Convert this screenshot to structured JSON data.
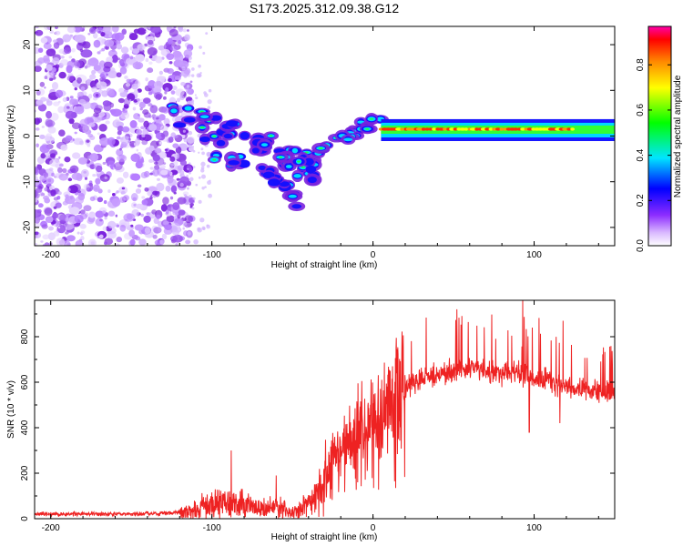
{
  "title": "S173.2025.312.09.38.G12",
  "colors": {
    "snr_line": "#ee2222",
    "scatter_noise": "#9a55ee",
    "axis": "#000000"
  },
  "chart_data": [
    {
      "type": "heatmap",
      "name": "spectrogram",
      "title": "S173.2025.312.09.38.G12",
      "xlabel": "Height of straight line (km)",
      "ylabel": "Frequency (Hz)",
      "xlim": [
        -210,
        150
      ],
      "ylim": [
        -24,
        24
      ],
      "xticks": [
        -200,
        -100,
        0,
        100
      ],
      "yticks": [
        -20,
        -10,
        0,
        10,
        20
      ],
      "xtick_labels": [
        "-200",
        "-100",
        "0",
        "100"
      ],
      "ytick_labels": [
        "-20",
        "-10",
        "0",
        "10",
        "20"
      ],
      "colorbar": {
        "label": "Normalized spectral amplitude",
        "range": [
          0,
          0.97
        ],
        "ticks": [
          0.0,
          0.2,
          0.4,
          0.6,
          0.8
        ],
        "tick_labels": [
          "0.0",
          "0.2",
          "0.4",
          "0.6",
          "0.8"
        ]
      },
      "features": {
        "noise_region_km": [
          -210,
          -120
        ],
        "descending_track_km": [
          -125,
          -35
        ],
        "descending_track_hz": [
          6,
          -8
        ],
        "secondary_track_km": [
          -70,
          -45
        ],
        "secondary_track_hz": [
          -6,
          -15
        ],
        "recovery_km": [
          -35,
          5
        ],
        "recovery_hz": [
          -3,
          3
        ],
        "steady_band_km": [
          5,
          150
        ],
        "steady_band_hz": 1.5
      }
    },
    {
      "type": "line",
      "name": "snr",
      "xlabel": "Height of straight line (km)",
      "ylabel": "SNR (10 * v/v)",
      "xlim": [
        -210,
        150
      ],
      "ylim": [
        0,
        960
      ],
      "xticks": [
        -200,
        -100,
        0,
        100
      ],
      "yticks": [
        0,
        200,
        400,
        600,
        800
      ],
      "xtick_labels": [
        "-200",
        "-100",
        "0",
        "100"
      ],
      "ytick_labels": [
        "0",
        "200",
        "400",
        "600",
        "800"
      ],
      "trend_km": [
        -210,
        -130,
        -120,
        -110,
        -100,
        -90,
        -80,
        -70,
        -60,
        -50,
        -40,
        -30,
        -20,
        -15,
        -10,
        -5,
        0,
        5,
        10,
        15,
        20,
        25,
        30,
        40,
        50,
        60,
        70,
        80,
        90,
        100,
        110,
        120,
        130,
        140,
        150
      ],
      "trend_snr": [
        20,
        22,
        30,
        45,
        60,
        70,
        55,
        45,
        50,
        30,
        60,
        150,
        280,
        330,
        380,
        390,
        400,
        420,
        520,
        560,
        580,
        600,
        610,
        640,
        650,
        660,
        650,
        640,
        640,
        620,
        600,
        580,
        570,
        560,
        550
      ],
      "spikes": [
        {
          "km": -88,
          "snr": 300
        },
        {
          "km": -60,
          "snr": 190
        },
        {
          "km": 93,
          "snr": 960
        },
        {
          "km": 118,
          "snr": 870
        },
        {
          "km": 97,
          "snr": 380
        },
        {
          "km": 116,
          "snr": 420
        }
      ]
    }
  ]
}
